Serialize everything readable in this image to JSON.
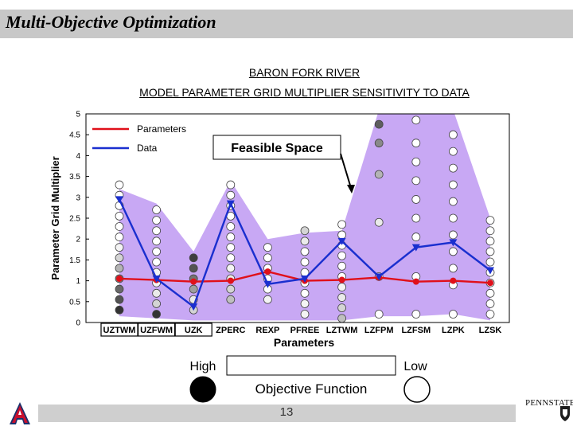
{
  "slide": {
    "title": "Multi-Objective Optimization",
    "page_number": "13",
    "logo_right_text": "PENNSTATE"
  },
  "chart_data": {
    "type": "line",
    "title": "BARON FORK RIVER",
    "subtitle": "MODEL PARAMETER GRID MULTIPLIER SENSITIVITY TO DATA",
    "xlabel": "Parameters",
    "ylabel": "Parameter Grid Multiplier",
    "ylim": [
      0,
      5
    ],
    "yticks": [
      0,
      0.5,
      1,
      1.5,
      2,
      2.5,
      3,
      3.5,
      4,
      4.5,
      5
    ],
    "categories": [
      "UZTWM",
      "UZFWM",
      "UZK",
      "ZPERC",
      "REXP",
      "PFREE",
      "LZTWM",
      "LZFPM",
      "LZFSM",
      "LZPK",
      "LZSK"
    ],
    "boxed_categories": [
      "UZTWM",
      "UZFWM",
      "UZK"
    ],
    "series": [
      {
        "name": "Parameters",
        "color": "#e0101a",
        "marker": "dot",
        "values": [
          1.05,
          1.02,
          0.98,
          1.0,
          1.22,
          1.0,
          1.02,
          1.08,
          0.98,
          1.0,
          0.95
        ]
      },
      {
        "name": "Data",
        "color": "#1a2fcf",
        "marker": "triangle-down",
        "values": [
          2.95,
          1.05,
          0.38,
          2.85,
          0.92,
          1.05,
          1.95,
          1.1,
          1.8,
          1.92,
          1.25
        ]
      }
    ],
    "feasible_space": {
      "label": "Feasible Space",
      "color": "#c8a8f4",
      "upper": [
        3.2,
        2.85,
        1.7,
        3.4,
        2.0,
        2.15,
        2.2,
        5.1,
        5.1,
        5.1,
        2.5
      ],
      "lower": [
        0.15,
        0.1,
        0.05,
        0.05,
        0.05,
        0.05,
        0.05,
        0.15,
        0.15,
        0.2,
        0.05
      ]
    },
    "objective_levels": [
      {
        "x": 0,
        "y": [
          0.3,
          0.55,
          0.8,
          1.05,
          1.3,
          1.55,
          1.8,
          2.05,
          2.3,
          2.55,
          2.8,
          3.05,
          3.3
        ],
        "shade": [
          0.95,
          0.8,
          0.7,
          0.6,
          0.35,
          0.2,
          0.05,
          0,
          0,
          0,
          0,
          0,
          0
        ]
      },
      {
        "x": 1,
        "y": [
          0.2,
          0.45,
          0.7,
          0.95,
          1.2,
          1.45,
          1.7,
          1.95,
          2.2,
          2.45,
          2.7
        ],
        "shade": [
          0.95,
          0.2,
          0.1,
          0.05,
          0.05,
          0,
          0,
          0,
          0,
          0,
          0
        ]
      },
      {
        "x": 2,
        "y": [
          0.3,
          0.55,
          0.8,
          1.05,
          1.3,
          1.55
        ],
        "shade": [
          0.2,
          0.1,
          0.45,
          0.65,
          0.8,
          0.9
        ]
      },
      {
        "x": 3,
        "y": [
          0.55,
          0.8,
          1.05,
          1.3,
          1.55,
          1.8,
          2.05,
          2.3,
          2.55,
          2.8,
          3.05,
          3.3
        ],
        "shade": [
          0.3,
          0.2,
          0.1,
          0.05,
          0,
          0,
          0,
          0,
          0,
          0,
          0,
          0
        ]
      },
      {
        "x": 4,
        "y": [
          0.55,
          0.8,
          1.05,
          1.3,
          1.55,
          1.8
        ],
        "shade": [
          0.05,
          0,
          0,
          0,
          0,
          0
        ]
      },
      {
        "x": 5,
        "y": [
          0.2,
          0.45,
          0.7,
          0.95,
          1.2,
          1.45,
          1.7,
          1.95,
          2.2
        ],
        "shade": [
          0.05,
          0.05,
          0,
          0,
          0,
          0,
          0,
          0.1,
          0.2
        ]
      },
      {
        "x": 6,
        "y": [
          0.1,
          0.35,
          0.6,
          0.85,
          1.1,
          1.35,
          1.6,
          1.85,
          2.1,
          2.35
        ],
        "shade": [
          0.3,
          0.2,
          0.1,
          0.05,
          0,
          0,
          0,
          0,
          0,
          0
        ]
      },
      {
        "x": 7,
        "y": [
          0.2,
          1.1,
          2.4,
          3.55,
          4.3,
          4.75
        ],
        "shade": [
          0,
          0,
          0.1,
          0.35,
          0.55,
          0.75
        ]
      },
      {
        "x": 8,
        "y": [
          0.2,
          1.1,
          2.05,
          2.5,
          2.95,
          3.4,
          3.85,
          4.3,
          4.85
        ],
        "shade": [
          0,
          0,
          0,
          0,
          0,
          0,
          0,
          0,
          0
        ]
      },
      {
        "x": 9,
        "y": [
          0.2,
          0.9,
          1.3,
          1.7,
          2.1,
          2.5,
          2.9,
          3.3,
          3.7,
          4.1,
          4.5
        ],
        "shade": [
          0,
          0,
          0,
          0,
          0,
          0,
          0,
          0,
          0,
          0,
          0
        ]
      },
      {
        "x": 10,
        "y": [
          0.2,
          0.45,
          0.7,
          0.95,
          1.2,
          1.45,
          1.7,
          1.95,
          2.2,
          2.45
        ],
        "shade": [
          0,
          0,
          0,
          0,
          0,
          0,
          0,
          0,
          0,
          0
        ]
      }
    ],
    "legend": {
      "placement": "top-left",
      "entries": [
        "Parameters",
        "Data"
      ]
    },
    "objective_scale": {
      "high_label": "High",
      "low_label": "Low",
      "caption": "Objective Function"
    },
    "grid": false
  }
}
